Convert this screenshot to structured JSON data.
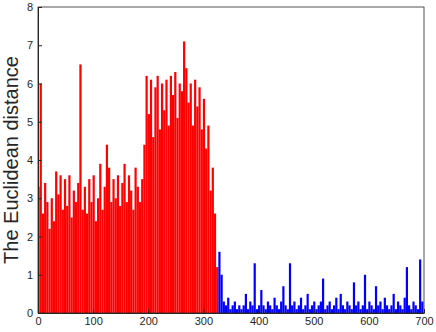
{
  "chart_data": {
    "type": "bar",
    "y_label": "The Euclidean distance",
    "xlim": [
      0,
      700
    ],
    "xticks": [
      0,
      100,
      200,
      300,
      400,
      500,
      600,
      700
    ],
    "ylim": [
      0,
      8
    ],
    "yticks": [
      0,
      1,
      2,
      3,
      4,
      5,
      6,
      7,
      8
    ],
    "grid": false,
    "series": [
      {
        "color": "#ff0000",
        "x": [
          1,
          5,
          9,
          13,
          17,
          21,
          25,
          29,
          33,
          37,
          41,
          45,
          49,
          53,
          57,
          61,
          65,
          69,
          73,
          77,
          81,
          85,
          89,
          93,
          97,
          101,
          105,
          109,
          113,
          117,
          121,
          125,
          129,
          133,
          137,
          141,
          145,
          149,
          153,
          157,
          161,
          165,
          169,
          173,
          177,
          181,
          185,
          189,
          193,
          197,
          201,
          205,
          209,
          213,
          217,
          221,
          225,
          229,
          233,
          237,
          241,
          245,
          249,
          253,
          257,
          261,
          265,
          269,
          273,
          277,
          281,
          285,
          289,
          293,
          297,
          301,
          305,
          309,
          313,
          317,
          321,
          325
        ],
        "values": [
          3.3,
          6.0,
          2.6,
          3.4,
          2.9,
          2.2,
          3.0,
          2.4,
          3.7,
          3.1,
          3.6,
          2.7,
          3.5,
          2.8,
          3.6,
          2.5,
          3.2,
          2.9,
          3.4,
          6.5,
          2.7,
          3.3,
          2.6,
          3.5,
          2.9,
          3.6,
          2.4,
          3.0,
          3.9,
          2.7,
          3.3,
          4.4,
          3.8,
          2.9,
          3.5,
          3.0,
          3.6,
          2.8,
          3.4,
          3.9,
          2.9,
          3.6,
          3.2,
          2.7,
          3.8,
          3.3,
          2.9,
          3.5,
          4.4,
          6.2,
          5.2,
          6.1,
          4.6,
          5.9,
          6.2,
          4.8,
          6.0,
          5.3,
          6.1,
          4.9,
          6.2,
          5.7,
          6.3,
          5.1,
          6.0,
          5.8,
          7.1,
          6.4,
          5.5,
          6.0,
          4.9,
          6.1,
          5.4,
          5.9,
          4.8,
          5.6,
          4.3,
          4.9,
          3.2,
          3.8,
          2.6,
          1.2
        ]
      },
      {
        "color": "#0000ff",
        "x": [
          329,
          333,
          337,
          341,
          345,
          349,
          353,
          357,
          361,
          365,
          369,
          373,
          377,
          381,
          385,
          389,
          393,
          397,
          401,
          405,
          409,
          413,
          417,
          421,
          425,
          429,
          433,
          437,
          441,
          445,
          449,
          453,
          457,
          461,
          465,
          469,
          473,
          477,
          481,
          485,
          489,
          493,
          497,
          501,
          505,
          509,
          513,
          517,
          521,
          525,
          529,
          533,
          537,
          541,
          545,
          549,
          553,
          557,
          561,
          565,
          569,
          573,
          577,
          581,
          585,
          589,
          593,
          597,
          601,
          605,
          609,
          613,
          617,
          621,
          625,
          629,
          633,
          637,
          641,
          645,
          649,
          653,
          657,
          661,
          665,
          669,
          673,
          677,
          681,
          685,
          689,
          693,
          697
        ],
        "values": [
          1.6,
          1.0,
          0.3,
          0.2,
          0.4,
          0.1,
          0.2,
          0.3,
          0.1,
          0.2,
          0.1,
          0.2,
          0.5,
          0.1,
          0.3,
          0.2,
          1.3,
          0.1,
          0.2,
          0.6,
          0.2,
          0.1,
          0.3,
          0.2,
          0.1,
          0.4,
          0.2,
          0.1,
          0.3,
          0.7,
          0.2,
          0.1,
          1.3,
          0.2,
          0.3,
          0.1,
          0.2,
          0.4,
          0.1,
          0.2,
          0.5,
          0.1,
          0.2,
          0.3,
          0.1,
          0.2,
          0.3,
          0.9,
          0.1,
          0.2,
          0.3,
          0.1,
          0.2,
          0.4,
          0.1,
          0.5,
          0.2,
          0.1,
          0.3,
          0.2,
          0.1,
          0.8,
          0.2,
          0.3,
          0.1,
          0.2,
          1.0,
          0.1,
          0.3,
          0.2,
          0.1,
          0.7,
          0.2,
          0.3,
          0.1,
          0.4,
          0.2,
          0.1,
          0.2,
          0.5,
          0.1,
          0.3,
          0.2,
          0.1,
          0.4,
          1.2,
          0.2,
          0.1,
          0.3,
          0.2,
          0.1,
          1.4,
          0.3
        ]
      }
    ]
  }
}
